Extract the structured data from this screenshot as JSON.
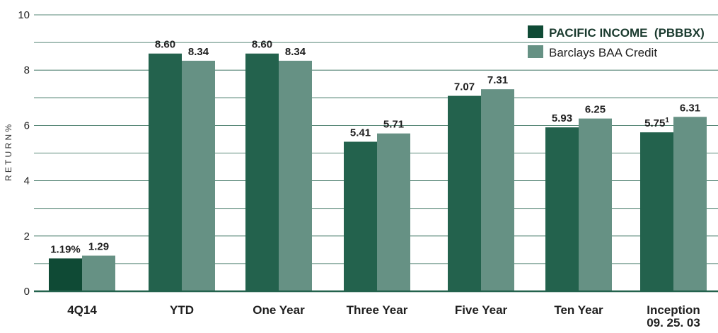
{
  "chart_data": {
    "type": "bar",
    "categories": [
      "4Q14",
      "YTD",
      "One Year",
      "Three Year",
      "Five Year",
      "Ten Year",
      "Inception\n09. 25. 03"
    ],
    "series": [
      {
        "name": "PACIFIC INCOME  (PBBBX)",
        "values": [
          1.19,
          8.6,
          8.6,
          5.41,
          7.07,
          5.93,
          5.75
        ],
        "labels": [
          "1.19%",
          "8.60",
          "8.60",
          "5.41",
          "7.07",
          "5.93",
          "5.75"
        ],
        "color": "#23624d",
        "highlight_color": "#0f4a35"
      },
      {
        "name": "Barclays BAA Credit",
        "values": [
          1.29,
          8.34,
          8.34,
          5.71,
          7.31,
          6.25,
          6.31
        ],
        "labels": [
          "1.29",
          "8.34",
          "8.34",
          "5.71",
          "7.31",
          "6.25",
          "6.31"
        ],
        "color": "#669184"
      }
    ],
    "footnote_marker": "1",
    "ylabel": "R E T U R N     %",
    "ylim": [
      0,
      10
    ],
    "yticks": [
      "0",
      "2",
      "4",
      "6",
      "8",
      "10"
    ],
    "grid": true,
    "legend_position": "top-right"
  }
}
